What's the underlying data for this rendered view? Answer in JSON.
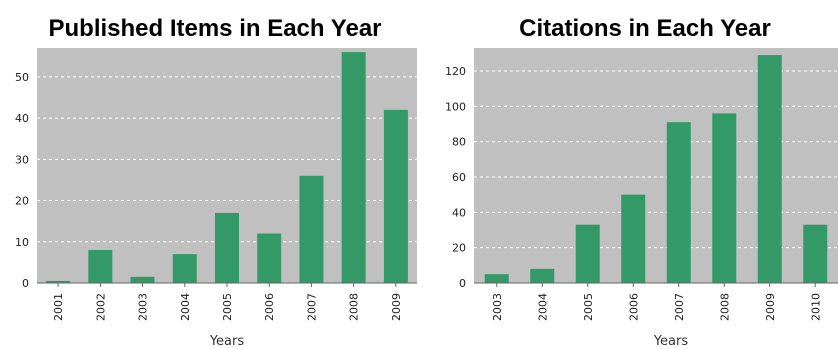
{
  "colors": {
    "plot_bg": "#c0c0c0",
    "bar": "#339966",
    "grid": "#ffffff",
    "axis": "#666666"
  },
  "chart_data": [
    {
      "type": "bar",
      "title": "Published Items in Each Year",
      "xlabel": "Years",
      "ylabel": "",
      "categories": [
        "2001",
        "2002",
        "2003",
        "2004",
        "2005",
        "2006",
        "2007",
        "2008",
        "2009"
      ],
      "values": [
        0.5,
        8,
        1.5,
        7,
        17,
        12,
        26,
        56,
        42
      ],
      "ylim": [
        0,
        57
      ],
      "yticks": [
        0,
        10,
        20,
        30,
        40,
        50
      ],
      "grid": true
    },
    {
      "type": "bar",
      "title": "Citations in Each Year",
      "xlabel": "Years",
      "ylabel": "",
      "categories": [
        "2003",
        "2004",
        "2005",
        "2006",
        "2007",
        "2008",
        "2009",
        "2010"
      ],
      "values": [
        5,
        8,
        33,
        50,
        91,
        96,
        129,
        33
      ],
      "ylim": [
        0,
        133
      ],
      "yticks": [
        0,
        20,
        40,
        60,
        80,
        100,
        120
      ],
      "grid": true
    }
  ]
}
